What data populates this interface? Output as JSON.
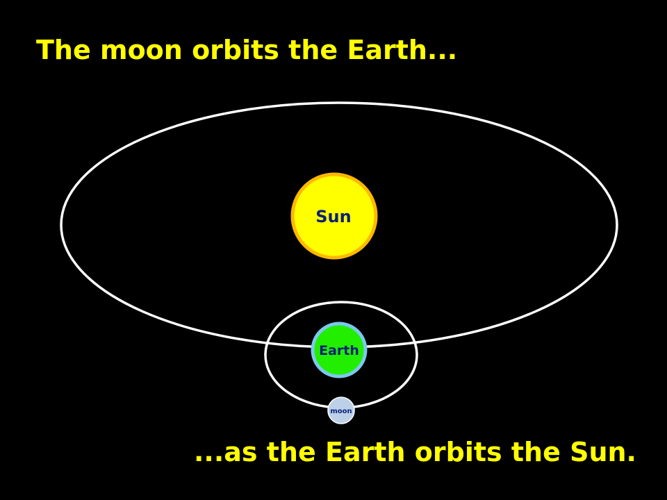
{
  "slide": {
    "top_caption": "The moon orbits the Earth...",
    "bottom_caption": "...as the Earth orbits the Sun."
  },
  "bodies": {
    "sun": {
      "label": "Sun",
      "fill": "#ffff00",
      "ring": "#ffb800"
    },
    "earth": {
      "label": "Earth",
      "fill": "#22ee00",
      "ring": "#7cc8f0"
    },
    "moon": {
      "label": "moon",
      "fill": "#bcd0e8"
    }
  },
  "colors": {
    "background": "#000000",
    "caption": "#ffff00",
    "orbit": "#ffffff",
    "label": "#0a1f7a"
  }
}
